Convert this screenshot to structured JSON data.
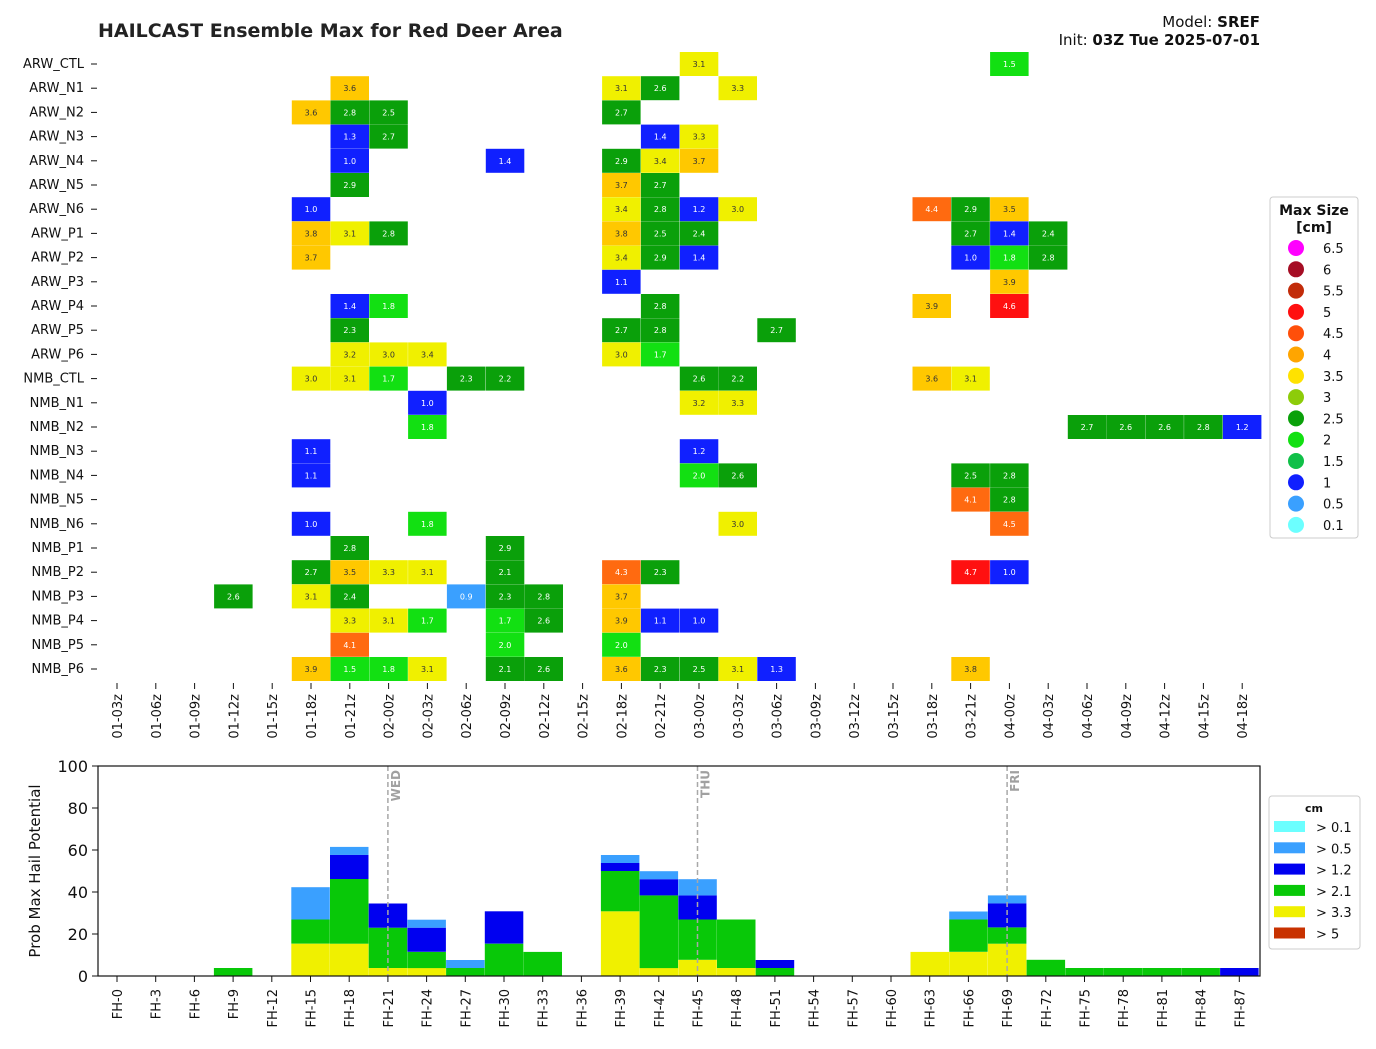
{
  "header": {
    "title": "HAILCAST Ensemble Max for Red Deer Area",
    "model_label": "Model:",
    "model_value": "SREF",
    "init_label": "Init:",
    "init_value": "03Z Tue 2025-07-01"
  },
  "chart_data": [
    {
      "type": "heatmap",
      "title": "HAILCAST Ensemble Max for Red Deer Area",
      "members": [
        "ARW_CTL",
        "ARW_N1",
        "ARW_N2",
        "ARW_N3",
        "ARW_N4",
        "ARW_N5",
        "ARW_N6",
        "ARW_P1",
        "ARW_P2",
        "ARW_P3",
        "ARW_P4",
        "ARW_P5",
        "ARW_P6",
        "NMB_CTL",
        "NMB_N1",
        "NMB_N2",
        "NMB_N3",
        "NMB_N4",
        "NMB_N5",
        "NMB_N6",
        "NMB_P1",
        "NMB_P2",
        "NMB_P3",
        "NMB_P4",
        "NMB_P5",
        "NMB_P6"
      ],
      "x_ticks": [
        "01-03z",
        "01-06z",
        "01-09z",
        "01-12z",
        "01-15z",
        "01-18z",
        "01-21z",
        "02-00z",
        "02-03z",
        "02-06z",
        "02-09z",
        "02-12z",
        "02-15z",
        "02-18z",
        "02-21z",
        "03-00z",
        "03-03z",
        "03-06z",
        "03-09z",
        "03-12z",
        "03-15z",
        "03-18z",
        "03-21z",
        "04-00z",
        "04-03z",
        "04-06z",
        "04-09z",
        "04-12z",
        "04-15z",
        "04-18z"
      ],
      "cells": {
        "ARW_CTL": [
          [
            "03-00z",
            "3.1"
          ],
          [
            "04-00z",
            "1.5"
          ]
        ],
        "ARW_N1": [
          [
            "01-21z",
            "3.6"
          ],
          [
            "02-18z",
            "3.1"
          ],
          [
            "02-21z",
            "2.6"
          ],
          [
            "03-03z",
            "3.3"
          ]
        ],
        "ARW_N2": [
          [
            "01-18z",
            "3.6"
          ],
          [
            "01-21z",
            "2.8"
          ],
          [
            "02-00z",
            "2.5"
          ],
          [
            "02-18z",
            "2.7"
          ]
        ],
        "ARW_N3": [
          [
            "01-21z",
            "1.3"
          ],
          [
            "02-00z",
            "2.7"
          ],
          [
            "02-21z",
            "1.4"
          ],
          [
            "03-00z",
            "3.3"
          ]
        ],
        "ARW_N4": [
          [
            "01-21z",
            "1.0"
          ],
          [
            "02-09z",
            "1.4"
          ],
          [
            "02-18z",
            "2.9"
          ],
          [
            "02-21z",
            "3.4"
          ],
          [
            "03-00z",
            "3.7"
          ]
        ],
        "ARW_N5": [
          [
            "01-21z",
            "2.9"
          ],
          [
            "02-18z",
            "3.7"
          ],
          [
            "02-21z",
            "2.7"
          ]
        ],
        "ARW_N6": [
          [
            "01-18z",
            "1.0"
          ],
          [
            "02-18z",
            "3.4"
          ],
          [
            "02-21z",
            "2.8"
          ],
          [
            "03-00z",
            "1.2"
          ],
          [
            "03-03z",
            "3.0"
          ],
          [
            "03-18z",
            "4.4"
          ],
          [
            "03-21z",
            "2.9"
          ],
          [
            "04-00z",
            "3.5"
          ]
        ],
        "ARW_P1": [
          [
            "01-18z",
            "3.8"
          ],
          [
            "01-21z",
            "3.1"
          ],
          [
            "02-00z",
            "2.8"
          ],
          [
            "02-18z",
            "3.8"
          ],
          [
            "02-21z",
            "2.5"
          ],
          [
            "03-00z",
            "2.4"
          ],
          [
            "03-21z",
            "2.7"
          ],
          [
            "04-00z",
            "1.4"
          ],
          [
            "04-03z",
            "2.4"
          ]
        ],
        "ARW_P2": [
          [
            "01-18z",
            "3.7"
          ],
          [
            "02-18z",
            "3.4"
          ],
          [
            "02-21z",
            "2.9"
          ],
          [
            "03-00z",
            "1.4"
          ],
          [
            "03-21z",
            "1.0"
          ],
          [
            "04-00z",
            "1.8"
          ],
          [
            "04-03z",
            "2.8"
          ]
        ],
        "ARW_P3": [
          [
            "02-18z",
            "1.1"
          ],
          [
            "04-00z",
            "3.9"
          ]
        ],
        "ARW_P4": [
          [
            "01-21z",
            "1.4"
          ],
          [
            "02-00z",
            "1.8"
          ],
          [
            "02-21z",
            "2.8"
          ],
          [
            "03-18z",
            "3.9"
          ],
          [
            "04-00z",
            "4.6"
          ]
        ],
        "ARW_P5": [
          [
            "01-21z",
            "2.3"
          ],
          [
            "02-18z",
            "2.7"
          ],
          [
            "02-21z",
            "2.8"
          ],
          [
            "03-06z",
            "2.7"
          ]
        ],
        "ARW_P6": [
          [
            "01-21z",
            "3.2"
          ],
          [
            "02-00z",
            "3.0"
          ],
          [
            "02-03z",
            "3.4"
          ],
          [
            "02-18z",
            "3.0"
          ],
          [
            "02-21z",
            "1.7"
          ]
        ],
        "NMB_CTL": [
          [
            "01-18z",
            "3.0"
          ],
          [
            "01-21z",
            "3.1"
          ],
          [
            "02-00z",
            "1.7"
          ],
          [
            "02-06z",
            "2.3"
          ],
          [
            "02-09z",
            "2.2"
          ],
          [
            "03-00z",
            "2.6"
          ],
          [
            "03-03z",
            "2.2"
          ],
          [
            "03-18z",
            "3.6"
          ],
          [
            "03-21z",
            "3.1"
          ]
        ],
        "NMB_N1": [
          [
            "02-03z",
            "1.0"
          ],
          [
            "03-00z",
            "3.2"
          ],
          [
            "03-03z",
            "3.3"
          ]
        ],
        "NMB_N2": [
          [
            "02-03z",
            "1.8"
          ],
          [
            "04-06z",
            "2.7"
          ],
          [
            "04-09z",
            "2.6"
          ],
          [
            "04-12z",
            "2.6"
          ],
          [
            "04-15z",
            "2.8"
          ],
          [
            "04-18z",
            "1.2"
          ]
        ],
        "NMB_N3": [
          [
            "01-18z",
            "1.1"
          ],
          [
            "03-00z",
            "1.2"
          ]
        ],
        "NMB_N4": [
          [
            "01-18z",
            "1.1"
          ],
          [
            "03-00z",
            "2.0"
          ],
          [
            "03-03z",
            "2.6"
          ],
          [
            "03-21z",
            "2.5"
          ],
          [
            "04-00z",
            "2.8"
          ]
        ],
        "NMB_N5": [
          [
            "03-21z",
            "4.1"
          ],
          [
            "04-00z",
            "2.8"
          ]
        ],
        "NMB_N6": [
          [
            "01-18z",
            "1.0"
          ],
          [
            "02-03z",
            "1.8"
          ],
          [
            "03-03z",
            "3.0"
          ],
          [
            "04-00z",
            "4.5"
          ]
        ],
        "NMB_P1": [
          [
            "01-21z",
            "2.8"
          ],
          [
            "02-09z",
            "2.9"
          ]
        ],
        "NMB_P2": [
          [
            "01-18z",
            "2.7"
          ],
          [
            "01-21z",
            "3.5"
          ],
          [
            "02-00z",
            "3.3"
          ],
          [
            "02-03z",
            "3.1"
          ],
          [
            "02-09z",
            "2.1"
          ],
          [
            "02-18z",
            "4.3"
          ],
          [
            "02-21z",
            "2.3"
          ],
          [
            "03-21z",
            "4.7"
          ],
          [
            "04-00z",
            "1.0"
          ]
        ],
        "NMB_P3": [
          [
            "01-12z",
            "2.6"
          ],
          [
            "01-18z",
            "3.1"
          ],
          [
            "01-21z",
            "2.4"
          ],
          [
            "02-06z",
            "0.9"
          ],
          [
            "02-09z",
            "2.3"
          ],
          [
            "02-12z",
            "2.8"
          ],
          [
            "02-18z",
            "3.7"
          ]
        ],
        "NMB_P4": [
          [
            "01-21z",
            "3.3"
          ],
          [
            "02-00z",
            "3.1"
          ],
          [
            "02-03z",
            "1.7"
          ],
          [
            "02-09z",
            "1.7"
          ],
          [
            "02-12z",
            "2.6"
          ],
          [
            "02-18z",
            "3.9"
          ],
          [
            "02-21z",
            "1.1"
          ],
          [
            "03-00z",
            "1.0"
          ]
        ],
        "NMB_P5": [
          [
            "01-21z",
            "4.1"
          ],
          [
            "02-09z",
            "2.0"
          ],
          [
            "02-18z",
            "2.0"
          ]
        ],
        "NMB_P6": [
          [
            "01-18z",
            "3.9"
          ],
          [
            "01-21z",
            "1.5"
          ],
          [
            "02-00z",
            "1.8"
          ],
          [
            "02-03z",
            "3.1"
          ],
          [
            "02-09z",
            "2.1"
          ],
          [
            "02-12z",
            "2.6"
          ],
          [
            "02-18z",
            "3.6"
          ],
          [
            "02-21z",
            "2.3"
          ],
          [
            "03-00z",
            "2.5"
          ],
          [
            "03-03z",
            "3.1"
          ],
          [
            "03-06z",
            "1.3"
          ],
          [
            "03-21z",
            "3.8"
          ]
        ]
      },
      "legend": {
        "title": "Max Size\n[cm]",
        "placement": "right",
        "entries": [
          {
            "label": "6.5",
            "color": "#ff00ff"
          },
          {
            "label": "6",
            "color": "#a50d24"
          },
          {
            "label": "5.5",
            "color": "#c22c0a"
          },
          {
            "label": "5",
            "color": "#ff1010"
          },
          {
            "label": "4.5",
            "color": "#ff4f0a"
          },
          {
            "label": "4",
            "color": "#ffa500"
          },
          {
            "label": "3.5",
            "color": "#ffe200"
          },
          {
            "label": "3",
            "color": "#8dcc0a"
          },
          {
            "label": "2.5",
            "color": "#0aa00a"
          },
          {
            "label": "2",
            "color": "#12e012"
          },
          {
            "label": "1.5",
            "color": "#10c048"
          },
          {
            "label": "1",
            "color": "#1020ff"
          },
          {
            "label": "0.5",
            "color": "#3aa0ff"
          },
          {
            "label": "0.1",
            "color": "#6cffff"
          }
        ]
      }
    },
    {
      "type": "bar",
      "stacked": true,
      "ylabel": "Prob Max Hail Potential",
      "ylim": [
        0,
        100
      ],
      "yticks": [
        "0",
        "20",
        "40",
        "60",
        "80",
        "100"
      ],
      "categories": [
        "FH-0",
        "FH-3",
        "FH-6",
        "FH-9",
        "FH-12",
        "FH-15",
        "FH-18",
        "FH-21",
        "FH-24",
        "FH-27",
        "FH-30",
        "FH-33",
        "FH-36",
        "FH-39",
        "FH-42",
        "FH-45",
        "FH-48",
        "FH-51",
        "FH-54",
        "FH-57",
        "FH-60",
        "FH-63",
        "FH-66",
        "FH-69",
        "FH-72",
        "FH-75",
        "FH-78",
        "FH-81",
        "FH-84",
        "FH-87"
      ],
      "series": [
        {
          "name": "> 5",
          "color": "#c83200",
          "values": [
            0,
            0,
            0,
            0,
            0,
            0,
            0,
            0,
            0,
            0,
            0,
            0,
            0,
            0,
            0,
            0,
            0,
            0,
            0,
            0,
            0,
            0,
            0,
            0,
            0,
            0,
            0,
            0,
            0,
            0
          ]
        },
        {
          "name": "> 3.3",
          "color": "#f0f000",
          "values": [
            0,
            0,
            0,
            0,
            0,
            15.4,
            15.4,
            3.8,
            3.8,
            0,
            0,
            0,
            0,
            30.8,
            3.8,
            7.7,
            3.8,
            0,
            0,
            0,
            0,
            11.5,
            11.5,
            15.4,
            0,
            0,
            0,
            0,
            0,
            0
          ]
        },
        {
          "name": "> 2.1",
          "color": "#08c808",
          "values": [
            0,
            0,
            0,
            3.8,
            0,
            11.5,
            30.8,
            19.2,
            7.7,
            3.8,
            15.4,
            11.5,
            0,
            19.2,
            34.6,
            19.2,
            23.1,
            3.8,
            0,
            0,
            0,
            0,
            15.4,
            7.7,
            7.7,
            3.8,
            3.8,
            3.8,
            3.8,
            0
          ]
        },
        {
          "name": "> 1.2",
          "color": "#0000f0",
          "values": [
            0,
            0,
            0,
            0,
            0,
            0,
            11.5,
            11.5,
            11.5,
            0,
            15.4,
            0,
            0,
            3.8,
            7.7,
            11.5,
            0,
            3.8,
            0,
            0,
            0,
            0,
            0,
            11.5,
            0,
            0,
            0,
            0,
            0,
            3.8
          ]
        },
        {
          "name": "> 0.5",
          "color": "#3aa0ff",
          "values": [
            0,
            0,
            0,
            0,
            0,
            15.4,
            3.8,
            0,
            3.8,
            3.8,
            0,
            0,
            0,
            3.8,
            3.8,
            7.7,
            0,
            0,
            0,
            0,
            0,
            0,
            3.8,
            3.8,
            0,
            0,
            0,
            0,
            0,
            0
          ]
        },
        {
          "name": "> 0.1",
          "color": "#6cffff",
          "values": [
            0,
            0,
            0,
            0,
            0,
            0,
            0,
            0,
            0,
            0,
            0,
            0,
            0,
            0,
            0,
            0,
            0,
            0,
            0,
            0,
            0,
            0,
            0,
            0,
            0,
            0,
            0,
            0,
            0,
            0
          ]
        }
      ],
      "day_markers": [
        {
          "label": "WED",
          "at": "FH-21"
        },
        {
          "label": "THU",
          "at": "FH-45"
        },
        {
          "label": "FRI",
          "at": "FH-69"
        }
      ],
      "legend": {
        "title": "cm",
        "placement": "right"
      }
    }
  ]
}
